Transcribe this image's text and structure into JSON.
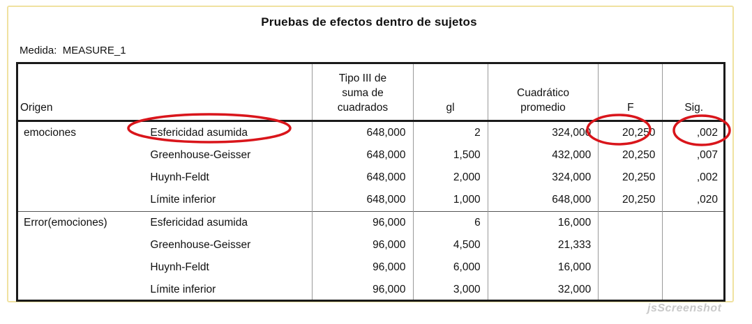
{
  "title": "Pruebas de efectos dentro de sujetos",
  "measure_label": "Medida:",
  "measure_value": "MEASURE_1",
  "headers": {
    "origen": "Origen",
    "tipo_iii_line1": "Tipo III de",
    "tipo_iii_line2": "suma de",
    "tipo_iii_line3": "cuadrados",
    "gl": "gl",
    "cuadratico_line1": "Cuadrático",
    "cuadratico_line2": "promedio",
    "f": "F",
    "sig": "Sig."
  },
  "groups": [
    {
      "source": "emociones",
      "rows": [
        {
          "correction": "Esfericidad asumida",
          "ss": "648,000",
          "df": "2",
          "ms": "324,000",
          "f": "20,250",
          "sig": ",002"
        },
        {
          "correction": "Greenhouse-Geisser",
          "ss": "648,000",
          "df": "1,500",
          "ms": "432,000",
          "f": "20,250",
          "sig": ",007"
        },
        {
          "correction": "Huynh-Feldt",
          "ss": "648,000",
          "df": "2,000",
          "ms": "324,000",
          "f": "20,250",
          "sig": ",002"
        },
        {
          "correction": "Límite inferior",
          "ss": "648,000",
          "df": "1,000",
          "ms": "648,000",
          "f": "20,250",
          "sig": ",020"
        }
      ]
    },
    {
      "source": "Error(emociones)",
      "rows": [
        {
          "correction": "Esfericidad asumida",
          "ss": "96,000",
          "df": "6",
          "ms": "16,000",
          "f": "",
          "sig": ""
        },
        {
          "correction": "Greenhouse-Geisser",
          "ss": "96,000",
          "df": "4,500",
          "ms": "21,333",
          "f": "",
          "sig": ""
        },
        {
          "correction": "Huynh-Feldt",
          "ss": "96,000",
          "df": "6,000",
          "ms": "16,000",
          "f": "",
          "sig": ""
        },
        {
          "correction": "Límite inferior",
          "ss": "96,000",
          "df": "3,000",
          "ms": "32,000",
          "f": "",
          "sig": ""
        }
      ]
    }
  ],
  "watermark": "jsScreenshot",
  "colors": {
    "highlight": "#d9151b",
    "border": "#1a1a1a",
    "frame": "#f0e2a0"
  }
}
